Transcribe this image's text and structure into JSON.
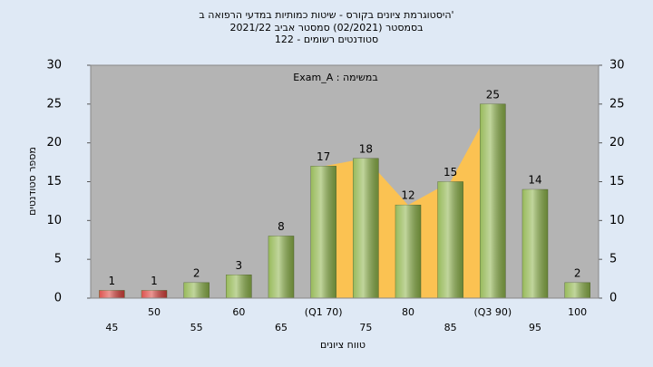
{
  "chart_data": {
    "type": "bar",
    "title": "'היסטוגרמת ציונים בקורס - שיטות כמותיות במדעי הרפואה ב",
    "subtitle": "בסמסטר  (02/2021)  סמסטר אביב 2021/22",
    "subtitle2": "סטודנטים רשומים - 122",
    "annotation": "במשימה : Exam_A",
    "x_label": "טווח ציונים",
    "y_label": "מספר סטודנטים",
    "categories": [
      "45",
      "50",
      "55",
      "60",
      "65",
      "(Q1 70)",
      "75",
      "80",
      "85",
      "(Q3 90)",
      "95",
      "100"
    ],
    "values": [
      1,
      1,
      2,
      3,
      8,
      17,
      18,
      12,
      15,
      25,
      14,
      2
    ],
    "colors": [
      "#d9413b",
      "#d9413b",
      "#8db34a",
      "#8db34a",
      "#8db34a",
      "#8db34a",
      "#8db34a",
      "#8db34a",
      "#8db34a",
      "#8db34a",
      "#8db34a",
      "#8db34a"
    ],
    "ylim": [
      0,
      30
    ],
    "yticks": [
      0,
      5,
      10,
      15,
      20,
      25,
      30
    ],
    "y2lim": [
      0,
      30
    ],
    "y2ticks": [
      0,
      5,
      10,
      15,
      20,
      25,
      30
    ],
    "grid": false
  }
}
